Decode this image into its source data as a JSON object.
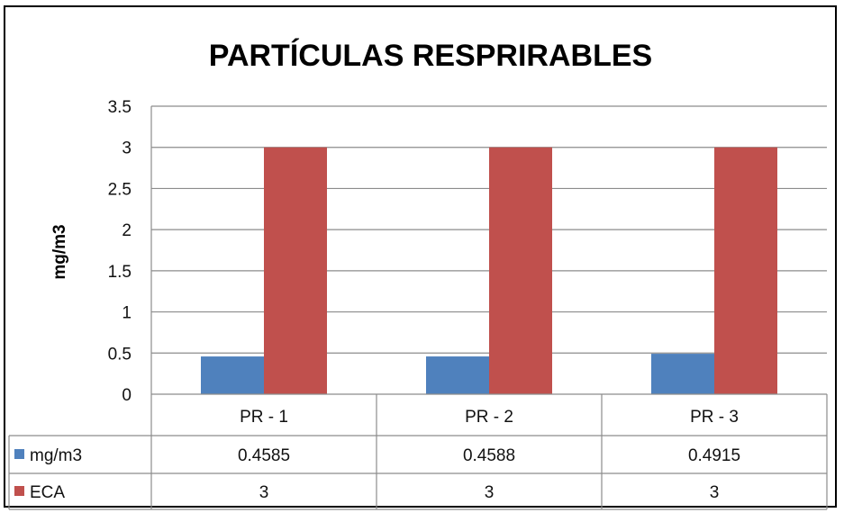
{
  "chart_data": {
    "type": "bar",
    "title": "PARTÍCULAS RESPRIRABLES",
    "ylabel": "mg/m3",
    "xlabel": "",
    "ylim": [
      0,
      3.5
    ],
    "yticks": [
      "0",
      "0.5",
      "1",
      "1.5",
      "2",
      "2.5",
      "3",
      "3.5"
    ],
    "categories": [
      "PR - 1",
      "PR - 2",
      "PR - 3"
    ],
    "series": [
      {
        "name": "mg/m3",
        "color": "#4F81BD",
        "values": [
          0.4585,
          0.4588,
          0.4915
        ],
        "labels": [
          "0.4585",
          "0.4588",
          "0.4915"
        ]
      },
      {
        "name": "ECA",
        "color": "#C0504D",
        "values": [
          3,
          3,
          3
        ],
        "labels": [
          "3",
          "3",
          "3"
        ]
      }
    ],
    "grid": true,
    "legend": "data-table"
  }
}
